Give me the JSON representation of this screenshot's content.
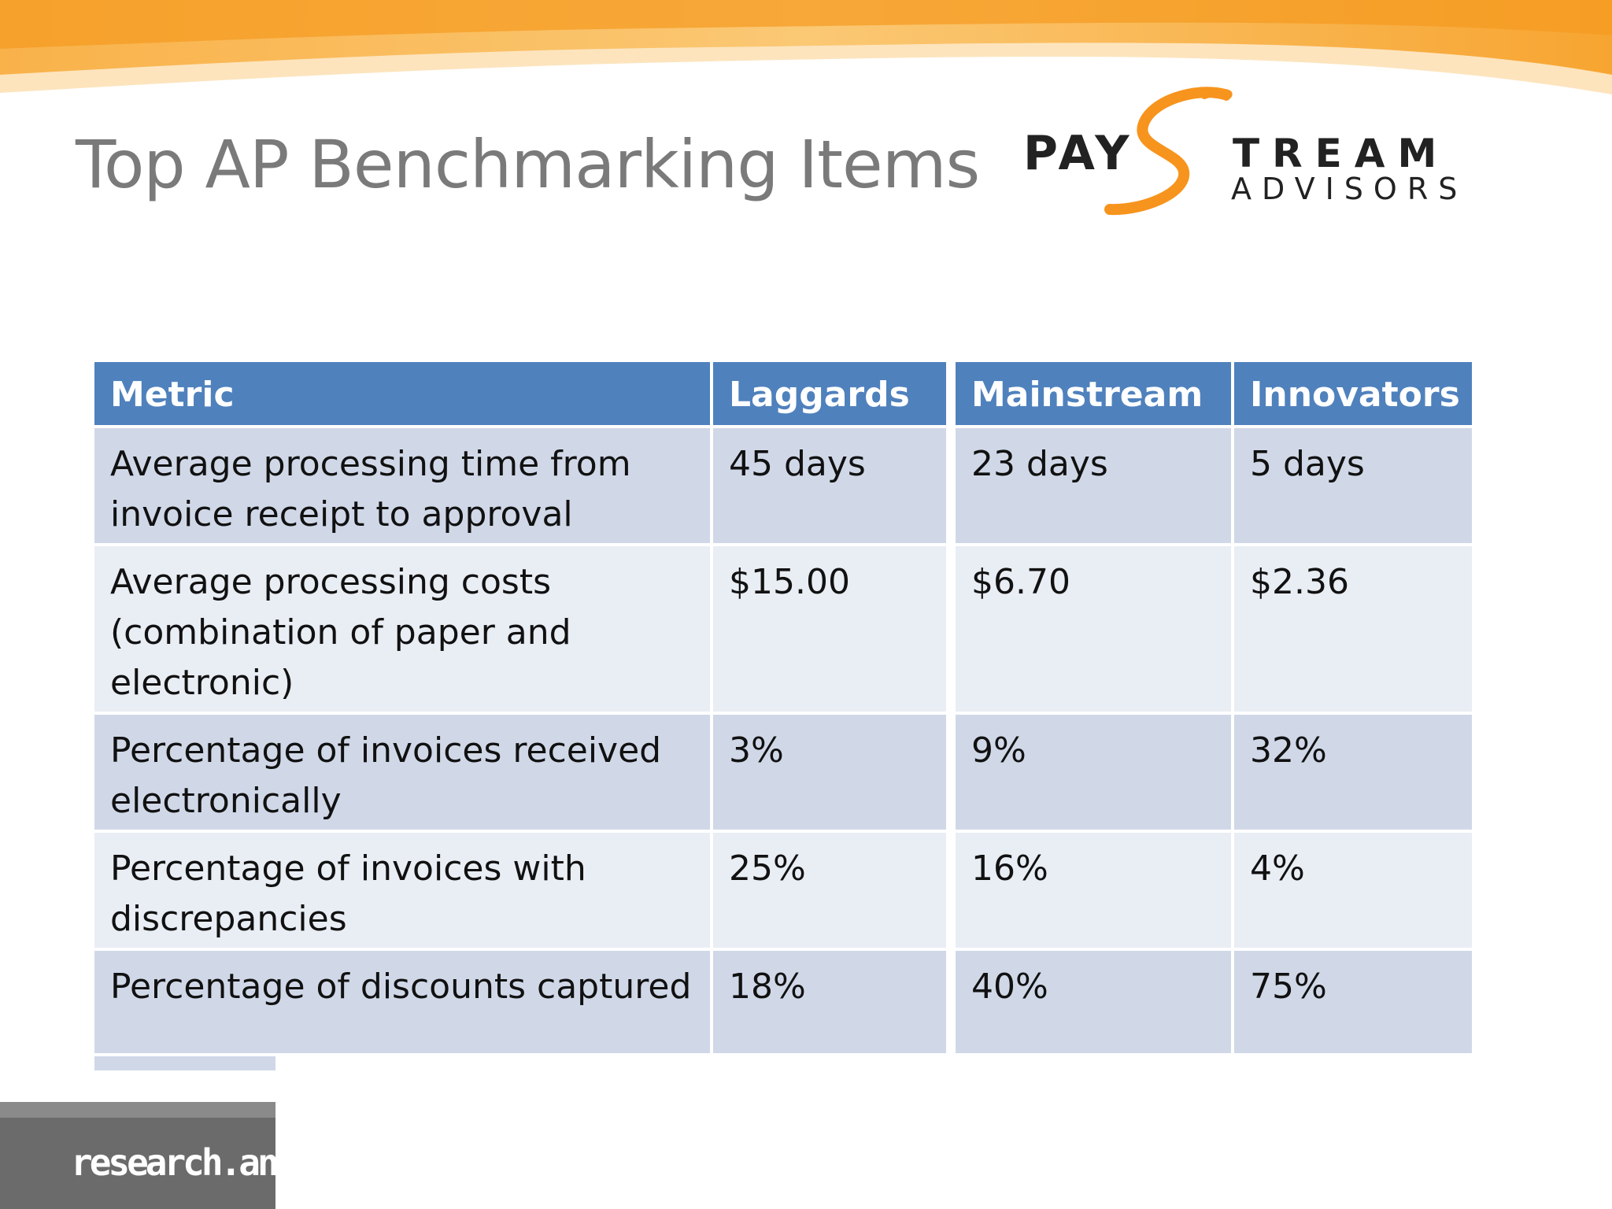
{
  "slide": {
    "title": "Top AP Benchmarking Items"
  },
  "logo": {
    "pay": "PAY",
    "tream": "TREAM",
    "advisors": "ADVISORS"
  },
  "table": {
    "headers": [
      "Metric",
      "Laggards",
      "Mainstream",
      "Innovators"
    ],
    "rows": [
      [
        "Average processing time from invoice receipt to approval",
        "45 days",
        "23 days",
        "5 days"
      ],
      [
        "Average processing costs (combination of paper and electronic)",
        "$15.00",
        "$6.70",
        "$2.36"
      ],
      [
        "Percentage of invoices received electronically",
        "3%",
        "9%",
        "32%"
      ],
      [
        "Percentage of invoices with discrepancies",
        "25%",
        "16%",
        "4%"
      ],
      [
        "Percentage of discounts captured",
        "18%",
        "40%",
        "75%"
      ]
    ]
  },
  "footer": {
    "text": "research.ana"
  },
  "colors": {
    "header_bg": "#4f81bd",
    "row_odd": "#d0d8e8",
    "row_even": "#e9edf4",
    "accent_orange": "#f7941d"
  }
}
